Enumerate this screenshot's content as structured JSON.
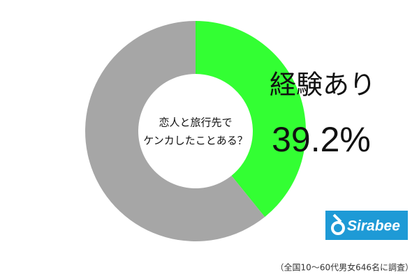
{
  "chart_data": {
    "type": "pie",
    "categories": [
      "経験あり",
      null
    ],
    "values": [
      39.2,
      60.8
    ],
    "value_labels": [
      "39.2%",
      null
    ],
    "colors": [
      "#33ff33",
      "#a6a6a6"
    ],
    "center_text": [
      "恋人と旅行先で",
      "ケンカしたことある？"
    ],
    "logo": "Sirabee",
    "note": "（全国10～60代男女646名に調査）"
  }
}
